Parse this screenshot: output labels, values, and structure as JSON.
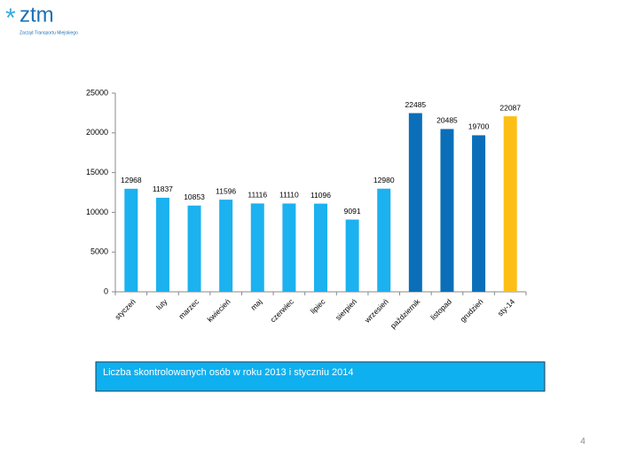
{
  "logo": {
    "mark": "*",
    "name": "ztm",
    "subtitle": "Zarząd Transportu Miejskiego"
  },
  "chart_data": {
    "type": "bar",
    "categories": [
      "styczeń",
      "luty",
      "marzec",
      "kwiecień",
      "maj",
      "czerwiec",
      "lipiec",
      "sierpień",
      "wrzesień",
      "październik",
      "listopad",
      "grudzień",
      "sty-14"
    ],
    "values": [
      12968,
      11837,
      10853,
      11596,
      11116,
      11110,
      11096,
      9091,
      12980,
      22485,
      20485,
      19700,
      22087
    ],
    "colors": [
      "#1cb1ef",
      "#1cb1ef",
      "#1cb1ef",
      "#1cb1ef",
      "#1cb1ef",
      "#1cb1ef",
      "#1cb1ef",
      "#1cb1ef",
      "#1cb1ef",
      "#0a6fb8",
      "#0a6fb8",
      "#0a6fb8",
      "#fdbf16"
    ],
    "ylim": [
      0,
      25000
    ],
    "yticks": [
      0,
      5000,
      10000,
      15000,
      20000,
      25000
    ],
    "grid": false
  },
  "caption": "Liczba skontrolowanych osób w roku 2013 i styczniu 2014",
  "page_number": "4"
}
